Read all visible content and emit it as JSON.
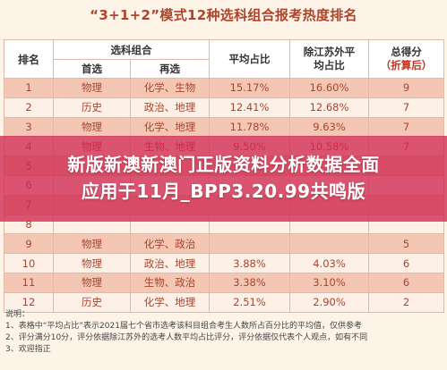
{
  "title": "“3+1+2”模式12种选科组合报考热度排名",
  "headers": {
    "rank": "排名",
    "combo": "选科组合",
    "first": "首选",
    "second": "再选",
    "avg_ratio": "平均占比",
    "jiangsu_ratio": "除江苏外平均占比",
    "score": "总得分",
    "score_note": "（折算后）"
  },
  "rows": [
    {
      "rank": "1",
      "first": "物理",
      "second": "化学、生物",
      "avg": "15.17%",
      "js": "16.60%",
      "score": "9"
    },
    {
      "rank": "2",
      "first": "历史",
      "second": "政治、地理",
      "avg": "12.41%",
      "js": "12.68%",
      "score": "7"
    },
    {
      "rank": "3",
      "first": "物理",
      "second": "化学、地理",
      "avg": "11.78%",
      "js": "9.63%",
      "score": "7"
    },
    {
      "rank": "4",
      "first": "物理",
      "second": "生物、地理",
      "avg": "9.50%",
      "js": "10.58%",
      "score": "7"
    },
    {
      "rank": "5",
      "first": "",
      "second": "",
      "avg": "",
      "js": "",
      "score": ""
    },
    {
      "rank": "6",
      "first": "",
      "second": "",
      "avg": "",
      "js": "",
      "score": ""
    },
    {
      "rank": "7",
      "first": "",
      "second": "",
      "avg": "",
      "js": "",
      "score": ""
    },
    {
      "rank": "8",
      "first": "",
      "second": "",
      "avg": "",
      "js": "",
      "score": ""
    },
    {
      "rank": "9",
      "first": "物理",
      "second": "化学、政治",
      "avg": "",
      "js": "",
      "score": "5"
    },
    {
      "rank": "10",
      "first": "物理",
      "second": "政治、地理",
      "avg": "3.88%",
      "js": "4.03%",
      "score": "6"
    },
    {
      "rank": "11",
      "first": "物理",
      "second": "生物、政治",
      "avg": "3.38%",
      "js": "3.10%",
      "score": "6"
    },
    {
      "rank": "12",
      "first": "历史",
      "second": "化学、地理",
      "avg": "2.51%",
      "js": "2.90%",
      "score": "2"
    }
  ],
  "banner": {
    "line1": "新版新澳新澳门正版资料分析数据全面",
    "line2": "应用于11月_BPP3.20.99共鸣版"
  },
  "notes": {
    "heading": "说明：",
    "n1": "1、表格中“平均占比”表示2021届七个省市选考该科目组合考生人数所占百分比的平均值，仅供参考",
    "n2": "2、评分满分10分，评分依据除江苏外的选考人数平均占比评分，评分依据仅代表个人观点，如有不同",
    "n3": "3、欢迎指正"
  }
}
